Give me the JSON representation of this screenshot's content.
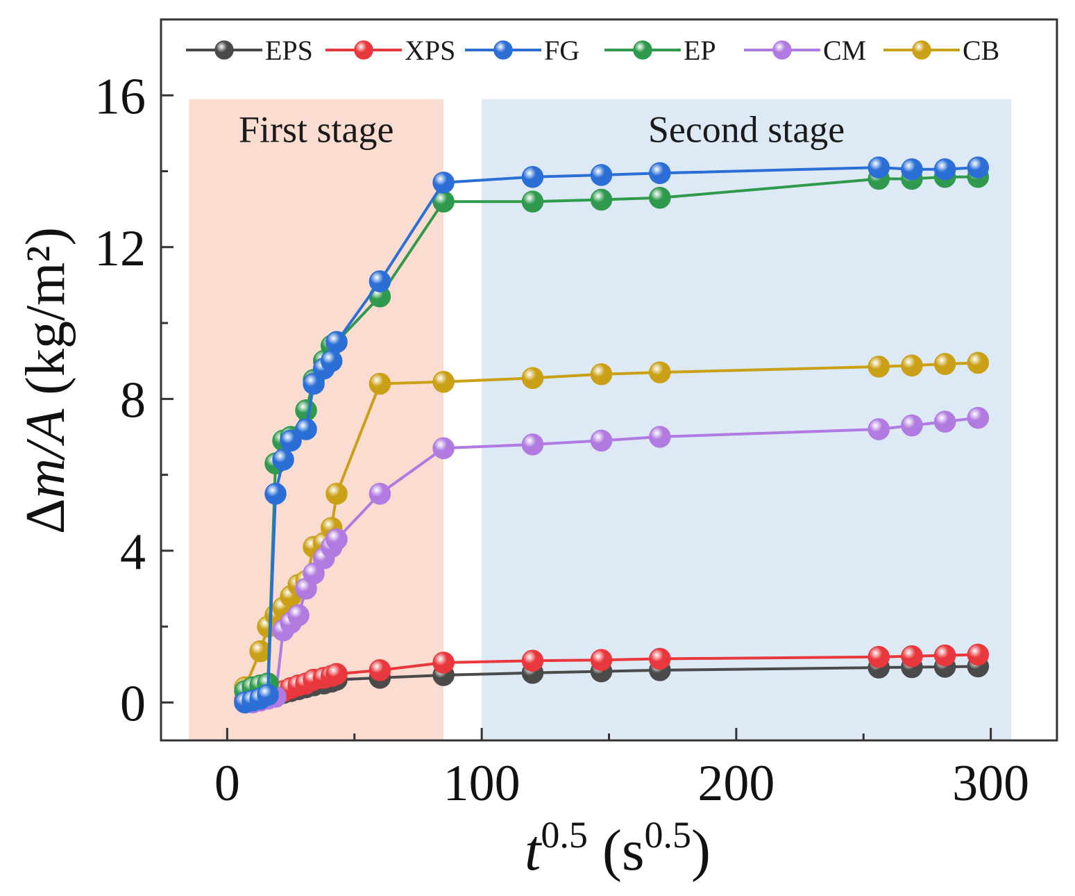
{
  "chart_data": {
    "type": "line",
    "xlabel": "t^0.5 (s^0.5)",
    "ylabel": "Δm/A (kg/m²)",
    "xlabel_parts": {
      "var": "t",
      "sup": "0.5",
      "open": "(",
      "unit": "s",
      "unit_sup": "0.5",
      "close": ")"
    },
    "ylabel_parts": {
      "delta": "Δ",
      "m": "m",
      "slash": "/",
      "A": "A",
      "unit": "(kg/m²)"
    },
    "xlim": [
      -26,
      326
    ],
    "ylim": [
      -1,
      18
    ],
    "xticks": [
      0,
      100,
      200,
      300
    ],
    "yticks": [
      0,
      4,
      8,
      12,
      16
    ],
    "xtick_labels": [
      "0",
      "100",
      "200",
      "300"
    ],
    "ytick_labels": [
      "0",
      "4",
      "8",
      "12",
      "16"
    ],
    "regions": [
      {
        "label": "First stage",
        "x0": -15,
        "x1": 85,
        "y0": -1,
        "y1": 15.9,
        "color": "#fbdcd0"
      },
      {
        "label": "Second stage",
        "x0": 100,
        "x1": 308,
        "y0": -1,
        "y1": 15.9,
        "color": "#ddeaf5"
      }
    ],
    "legend_position": "top",
    "series": [
      {
        "name": "EPS",
        "color": "#4a4a4a",
        "x": [
          7,
          10,
          13,
          16,
          19,
          22,
          25,
          28,
          31,
          34,
          38,
          41,
          43,
          60,
          85,
          120,
          147,
          170,
          256,
          269,
          282,
          295
        ],
        "y": [
          0.05,
          0.1,
          0.12,
          0.15,
          0.2,
          0.25,
          0.3,
          0.35,
          0.4,
          0.45,
          0.5,
          0.55,
          0.6,
          0.65,
          0.72,
          0.78,
          0.82,
          0.85,
          0.92,
          0.93,
          0.94,
          0.95
        ]
      },
      {
        "name": "XPS",
        "color": "#e8383d",
        "x": [
          7,
          10,
          13,
          16,
          19,
          22,
          25,
          28,
          31,
          34,
          38,
          41,
          43,
          60,
          85,
          120,
          147,
          170,
          256,
          269,
          282,
          295
        ],
        "y": [
          0.05,
          0.1,
          0.12,
          0.15,
          0.2,
          0.3,
          0.38,
          0.45,
          0.5,
          0.6,
          0.65,
          0.7,
          0.75,
          0.85,
          1.05,
          1.1,
          1.12,
          1.15,
          1.2,
          1.22,
          1.24,
          1.26
        ]
      },
      {
        "name": "FG",
        "color": "#2a6ed6",
        "x": [
          7,
          10,
          13,
          16,
          19,
          22,
          25,
          31,
          34,
          38,
          41,
          43,
          60,
          85,
          120,
          147,
          170,
          256,
          269,
          282,
          295
        ],
        "y": [
          0.0,
          0.05,
          0.1,
          0.2,
          5.5,
          6.4,
          6.9,
          7.2,
          8.4,
          8.8,
          9.0,
          9.5,
          11.1,
          13.7,
          13.85,
          13.9,
          13.95,
          14.1,
          14.05,
          14.05,
          14.1
        ]
      },
      {
        "name": "EP",
        "color": "#2f9a4d",
        "x": [
          7,
          10,
          13,
          16,
          19,
          22,
          25,
          31,
          34,
          38,
          41,
          43,
          60,
          85,
          120,
          147,
          170,
          256,
          269,
          282,
          295
        ],
        "y": [
          0.3,
          0.4,
          0.45,
          0.5,
          6.3,
          6.9,
          7.0,
          7.7,
          8.5,
          9.0,
          9.4,
          9.5,
          10.7,
          13.2,
          13.2,
          13.25,
          13.3,
          13.8,
          13.8,
          13.85,
          13.85
        ]
      },
      {
        "name": "CM",
        "color": "#b07ae0",
        "x": [
          7,
          10,
          13,
          16,
          19,
          22,
          25,
          28,
          31,
          34,
          38,
          41,
          43,
          60,
          85,
          120,
          147,
          170,
          256,
          269,
          282,
          295
        ],
        "y": [
          0.0,
          0.0,
          0.05,
          0.1,
          0.15,
          1.9,
          2.1,
          2.3,
          3.0,
          3.4,
          3.8,
          4.1,
          4.3,
          5.5,
          6.7,
          6.8,
          6.9,
          7.0,
          7.2,
          7.3,
          7.4,
          7.5
        ]
      },
      {
        "name": "CB",
        "color": "#caa017",
        "x": [
          7,
          13,
          16,
          19,
          22,
          25,
          28,
          31,
          34,
          38,
          41,
          43,
          60,
          85,
          120,
          147,
          170,
          256,
          269,
          282,
          295
        ],
        "y": [
          0.4,
          1.35,
          2.0,
          2.3,
          2.5,
          2.8,
          3.1,
          3.2,
          4.1,
          4.2,
          4.6,
          5.5,
          8.4,
          8.45,
          8.55,
          8.65,
          8.7,
          8.85,
          8.88,
          8.92,
          8.95
        ]
      }
    ]
  }
}
